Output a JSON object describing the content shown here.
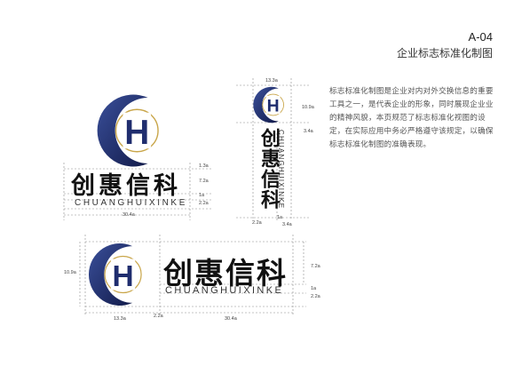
{
  "header": {
    "code": "A-04",
    "title": "企业标志标准化制图"
  },
  "description": "标志标准化制图是企业对内对外交换信息的重要工具之一，是代表企业的形象，同时展现企业业的精神风貌，本页规范了标志标准化视图的设定，在实际应用中务必严格遵守该规定，以确保标志标准化制图的准确表现。",
  "logo": {
    "letter": "H",
    "name_cn": "创惠信科",
    "name_pinyin": "CHUANGHUIXINKE"
  },
  "colors": {
    "navy": "#1f2d6e",
    "navy_light": "#3a4f9a",
    "gold": "#c9a64a",
    "guide": "#8a8a8a"
  },
  "dims": {
    "stacked": {
      "d1": "1.3a",
      "d2": "7.2a",
      "d3": "1a",
      "d4": "2.2a",
      "width": "30.4a"
    },
    "vertical": {
      "top": "13.3a",
      "h": "10.9a",
      "side": "3.4a",
      "b1": "2.2a",
      "b2": "1a",
      "b3": "3.4a"
    },
    "horizontal": {
      "left": "10.9a",
      "r1": "7.2a",
      "r2": "1a",
      "r3": "2.2a",
      "b1": "13.3a",
      "b2": "2.2a",
      "b3": "30.4a"
    }
  }
}
